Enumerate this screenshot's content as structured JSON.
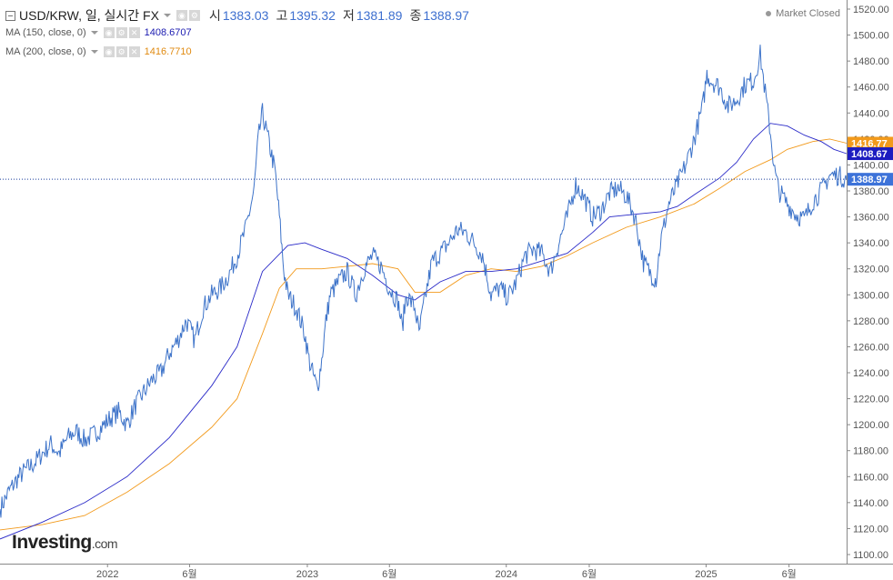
{
  "header": {
    "symbol": "USD/KRW, 일, 실시간 FX",
    "open_label": "시",
    "open": "1383.03",
    "high_label": "고",
    "high": "1395.32",
    "low_label": "저",
    "low": "1381.89",
    "close_label": "종",
    "close": "1388.97",
    "market_status": "Market Closed"
  },
  "indicators": [
    {
      "label": "MA (150, close, 0)",
      "value": "1408.6707",
      "color": "#1a1ab0"
    },
    {
      "label": "MA (200, close, 0)",
      "value": "1416.7710",
      "color": "#f29a1c"
    }
  ],
  "branding": {
    "logo": "Investing",
    "logo_suffix": ".com"
  },
  "colors": {
    "price": "#3d73c9",
    "ma150": "#2a2ac8",
    "ma200": "#f29a1c",
    "axis": "#555555",
    "price_line_dotted": "#1a3e9c"
  },
  "chart_data": {
    "type": "line",
    "y_axis_ticks": [
      1100,
      1120,
      1140,
      1160,
      1180,
      1200,
      1220,
      1240,
      1260,
      1280,
      1300,
      1320,
      1340,
      1360,
      1380,
      1400,
      1420,
      1440,
      1460,
      1480,
      1500,
      1520
    ],
    "ylim": [
      1093,
      1527
    ],
    "x_axis_labels": [
      {
        "label": "2022",
        "t": 0.127
      },
      {
        "label": "6월",
        "t": 0.224
      },
      {
        "label": "2023",
        "t": 0.363
      },
      {
        "label": "6월",
        "t": 0.46
      },
      {
        "label": "2024",
        "t": 0.598
      },
      {
        "label": "6월",
        "t": 0.696
      },
      {
        "label": "2025",
        "t": 0.834
      },
      {
        "label": "6월",
        "t": 0.932
      }
    ],
    "badges": {
      "ma200": "1416.77",
      "ma150": "1408.67",
      "last": "1388.97"
    },
    "series": [
      {
        "key": "price",
        "points": [
          [
            0.0,
            1135
          ],
          [
            0.01,
            1148
          ],
          [
            0.02,
            1158
          ],
          [
            0.03,
            1165
          ],
          [
            0.04,
            1170
          ],
          [
            0.05,
            1178
          ],
          [
            0.06,
            1185
          ],
          [
            0.07,
            1178
          ],
          [
            0.08,
            1190
          ],
          [
            0.09,
            1195
          ],
          [
            0.1,
            1188
          ],
          [
            0.11,
            1192
          ],
          [
            0.12,
            1198
          ],
          [
            0.13,
            1205
          ],
          [
            0.14,
            1210
          ],
          [
            0.15,
            1200
          ],
          [
            0.16,
            1215
          ],
          [
            0.17,
            1225
          ],
          [
            0.18,
            1235
          ],
          [
            0.19,
            1240
          ],
          [
            0.2,
            1255
          ],
          [
            0.21,
            1265
          ],
          [
            0.22,
            1280
          ],
          [
            0.23,
            1265
          ],
          [
            0.24,
            1290
          ],
          [
            0.25,
            1300
          ],
          [
            0.26,
            1305
          ],
          [
            0.27,
            1315
          ],
          [
            0.28,
            1330
          ],
          [
            0.29,
            1350
          ],
          [
            0.3,
            1380
          ],
          [
            0.305,
            1420
          ],
          [
            0.31,
            1440
          ],
          [
            0.315,
            1425
          ],
          [
            0.32,
            1410
          ],
          [
            0.325,
            1395
          ],
          [
            0.33,
            1360
          ],
          [
            0.335,
            1320
          ],
          [
            0.34,
            1300
          ],
          [
            0.35,
            1290
          ],
          [
            0.36,
            1270
          ],
          [
            0.365,
            1250
          ],
          [
            0.37,
            1238
          ],
          [
            0.375,
            1228
          ],
          [
            0.38,
            1250
          ],
          [
            0.385,
            1280
          ],
          [
            0.39,
            1300
          ],
          [
            0.4,
            1310
          ],
          [
            0.41,
            1318
          ],
          [
            0.42,
            1300
          ],
          [
            0.43,
            1320
          ],
          [
            0.44,
            1330
          ],
          [
            0.45,
            1322
          ],
          [
            0.46,
            1305
          ],
          [
            0.47,
            1295
          ],
          [
            0.475,
            1275
          ],
          [
            0.48,
            1300
          ],
          [
            0.49,
            1290
          ],
          [
            0.495,
            1270
          ],
          [
            0.5,
            1290
          ],
          [
            0.51,
            1325
          ],
          [
            0.52,
            1332
          ],
          [
            0.53,
            1340
          ],
          [
            0.54,
            1350
          ],
          [
            0.55,
            1348
          ],
          [
            0.56,
            1340
          ],
          [
            0.57,
            1330
          ],
          [
            0.575,
            1315
          ],
          [
            0.58,
            1300
          ],
          [
            0.59,
            1305
          ],
          [
            0.6,
            1298
          ],
          [
            0.61,
            1310
          ],
          [
            0.62,
            1330
          ],
          [
            0.63,
            1335
          ],
          [
            0.64,
            1332
          ],
          [
            0.65,
            1318
          ],
          [
            0.66,
            1340
          ],
          [
            0.67,
            1360
          ],
          [
            0.68,
            1385
          ],
          [
            0.69,
            1375
          ],
          [
            0.7,
            1360
          ],
          [
            0.71,
            1365
          ],
          [
            0.72,
            1378
          ],
          [
            0.73,
            1382
          ],
          [
            0.74,
            1376
          ],
          [
            0.75,
            1360
          ],
          [
            0.76,
            1325
          ],
          [
            0.765,
            1320
          ],
          [
            0.77,
            1315
          ],
          [
            0.775,
            1312
          ],
          [
            0.78,
            1340
          ],
          [
            0.79,
            1370
          ],
          [
            0.8,
            1385
          ],
          [
            0.81,
            1400
          ],
          [
            0.82,
            1420
          ],
          [
            0.83,
            1445
          ],
          [
            0.835,
            1470
          ],
          [
            0.84,
            1465
          ],
          [
            0.85,
            1460
          ],
          [
            0.86,
            1445
          ],
          [
            0.87,
            1450
          ],
          [
            0.88,
            1462
          ],
          [
            0.89,
            1465
          ],
          [
            0.898,
            1485
          ],
          [
            0.905,
            1450
          ],
          [
            0.91,
            1425
          ],
          [
            0.915,
            1395
          ],
          [
            0.92,
            1380
          ],
          [
            0.93,
            1370
          ],
          [
            0.94,
            1362
          ],
          [
            0.95,
            1358
          ],
          [
            0.96,
            1372
          ],
          [
            0.97,
            1380
          ],
          [
            0.98,
            1392
          ],
          [
            0.99,
            1392
          ],
          [
            1.0,
            1388.97
          ]
        ]
      },
      {
        "key": "ma150",
        "points": [
          [
            0.0,
            1112
          ],
          [
            0.05,
            1125
          ],
          [
            0.1,
            1140
          ],
          [
            0.15,
            1160
          ],
          [
            0.2,
            1190
          ],
          [
            0.25,
            1230
          ],
          [
            0.28,
            1260
          ],
          [
            0.31,
            1318
          ],
          [
            0.34,
            1338
          ],
          [
            0.36,
            1340
          ],
          [
            0.38,
            1335
          ],
          [
            0.41,
            1328
          ],
          [
            0.44,
            1315
          ],
          [
            0.47,
            1300
          ],
          [
            0.49,
            1296
          ],
          [
            0.52,
            1310
          ],
          [
            0.55,
            1318
          ],
          [
            0.58,
            1318
          ],
          [
            0.61,
            1320
          ],
          [
            0.64,
            1326
          ],
          [
            0.67,
            1332
          ],
          [
            0.7,
            1348
          ],
          [
            0.72,
            1360
          ],
          [
            0.75,
            1362
          ],
          [
            0.78,
            1364
          ],
          [
            0.8,
            1368
          ],
          [
            0.82,
            1377
          ],
          [
            0.85,
            1390
          ],
          [
            0.87,
            1402
          ],
          [
            0.89,
            1420
          ],
          [
            0.91,
            1432
          ],
          [
            0.93,
            1430
          ],
          [
            0.95,
            1423
          ],
          [
            0.97,
            1418
          ],
          [
            0.985,
            1412
          ],
          [
            1.0,
            1408.67
          ]
        ]
      },
      {
        "key": "ma200",
        "points": [
          [
            0.0,
            1119
          ],
          [
            0.05,
            1123
          ],
          [
            0.1,
            1130
          ],
          [
            0.15,
            1148
          ],
          [
            0.2,
            1170
          ],
          [
            0.25,
            1198
          ],
          [
            0.28,
            1220
          ],
          [
            0.31,
            1270
          ],
          [
            0.33,
            1305
          ],
          [
            0.35,
            1320
          ],
          [
            0.38,
            1320
          ],
          [
            0.41,
            1322
          ],
          [
            0.44,
            1324
          ],
          [
            0.47,
            1320
          ],
          [
            0.49,
            1302
          ],
          [
            0.52,
            1302
          ],
          [
            0.55,
            1315
          ],
          [
            0.58,
            1320
          ],
          [
            0.61,
            1318
          ],
          [
            0.64,
            1322
          ],
          [
            0.67,
            1330
          ],
          [
            0.7,
            1340
          ],
          [
            0.74,
            1352
          ],
          [
            0.78,
            1360
          ],
          [
            0.82,
            1370
          ],
          [
            0.85,
            1382
          ],
          [
            0.88,
            1395
          ],
          [
            0.91,
            1404
          ],
          [
            0.93,
            1412
          ],
          [
            0.96,
            1418
          ],
          [
            0.98,
            1420
          ],
          [
            1.0,
            1416.77
          ]
        ]
      }
    ]
  }
}
